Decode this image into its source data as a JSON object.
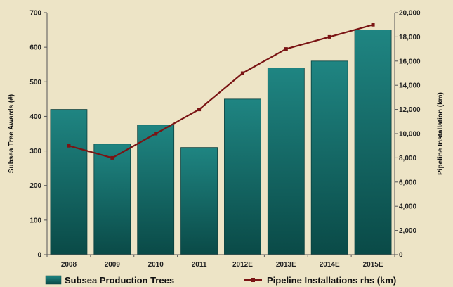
{
  "chart_data": {
    "type": "bar",
    "categories": [
      "2008",
      "2009",
      "2010",
      "2011",
      "2012E",
      "2013E",
      "2014E",
      "2015E"
    ],
    "series": [
      {
        "name": "Subsea Production Trees",
        "type": "bar",
        "axis": "left",
        "values": [
          420,
          320,
          375,
          310,
          450,
          540,
          560,
          650
        ],
        "color": "#1f7b78"
      },
      {
        "name": "Pipeline Installations rhs (km)",
        "type": "line",
        "axis": "right",
        "values": [
          9000,
          8000,
          10000,
          12000,
          15000,
          17000,
          18000,
          19000
        ],
        "color": "#7a1414"
      }
    ],
    "ylabel": "Subsea Tree Awards (#)",
    "y2label": "Pipeline Installation (km)",
    "ylim": [
      0,
      700
    ],
    "y2lim": [
      0,
      20000
    ],
    "yticks": [
      "0",
      "100",
      "200",
      "300",
      "400",
      "500",
      "600",
      "700"
    ],
    "y2ticks": [
      "0",
      "2,000",
      "4,000",
      "6,000",
      "8,000",
      "10,000",
      "12,000",
      "14,000",
      "16,000",
      "18,000",
      "20,000"
    ],
    "grid": false,
    "legend": "bottom"
  }
}
